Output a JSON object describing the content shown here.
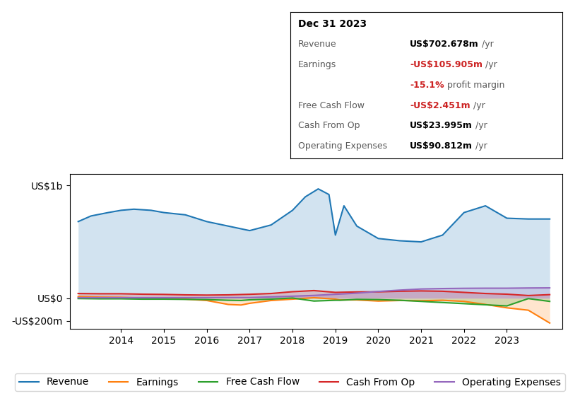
{
  "chart_data": {
    "type": "area",
    "xlim": [
      2012.8,
      2024.3
    ],
    "ylim": [
      -270,
      1100
    ],
    "xticks": [
      2014,
      2015,
      2016,
      2017,
      2018,
      2019,
      2020,
      2021,
      2022,
      2023
    ],
    "yticks": [
      {
        "value": -200,
        "label": "-US$200m"
      },
      {
        "value": 0,
        "label": "US$0"
      },
      {
        "value": 1000,
        "label": "US$1b"
      }
    ],
    "legend": "lower center",
    "series": [
      {
        "name": "Revenue",
        "x": [
          2013.0,
          2013.3,
          2013.7,
          2014.0,
          2014.3,
          2014.7,
          2015.0,
          2015.5,
          2016.0,
          2016.5,
          2017.0,
          2017.5,
          2018.0,
          2018.3,
          2018.6,
          2018.85,
          2019.0,
          2019.2,
          2019.5,
          2020.0,
          2020.5,
          2021.0,
          2021.5,
          2022.0,
          2022.5,
          2023.0,
          2023.5,
          2024.0
        ],
        "values": [
          680,
          730,
          760,
          780,
          790,
          780,
          760,
          740,
          680,
          640,
          600,
          650,
          780,
          900,
          970,
          920,
          560,
          820,
          640,
          530,
          510,
          500,
          560,
          760,
          820,
          710,
          703,
          703
        ]
      },
      {
        "name": "Earnings",
        "x": [
          2013.0,
          2013.5,
          2014.0,
          2014.5,
          2015.0,
          2015.5,
          2016.0,
          2016.5,
          2016.8,
          2017.0,
          2017.5,
          2018.0,
          2018.5,
          2019.0,
          2019.1,
          2019.5,
          2020.0,
          2020.5,
          2021.0,
          2021.5,
          2022.0,
          2022.5,
          2023.0,
          2023.5,
          2024.0
        ],
        "values": [
          15,
          10,
          8,
          2,
          -5,
          -8,
          -20,
          -55,
          -60,
          -45,
          -20,
          -8,
          5,
          -8,
          -15,
          -15,
          -25,
          -20,
          -22,
          -18,
          -28,
          -55,
          -85,
          -106,
          -220
        ]
      },
      {
        "name": "Free Cash Flow",
        "x": [
          2013.0,
          2013.5,
          2014.0,
          2014.5,
          2015.0,
          2015.5,
          2016.0,
          2016.5,
          2016.8,
          2017.0,
          2017.5,
          2018.0,
          2018.5,
          2019.0,
          2019.1,
          2019.5,
          2020.0,
          2020.5,
          2021.0,
          2021.5,
          2022.0,
          2022.5,
          2023.0,
          2023.5,
          2024.0
        ],
        "values": [
          -3,
          -5,
          -5,
          -8,
          -8,
          -10,
          -12,
          -18,
          -20,
          -14,
          -8,
          2,
          -25,
          -18,
          -18,
          -10,
          -12,
          -18,
          -28,
          -38,
          -48,
          -58,
          -68,
          -3,
          -28
        ]
      },
      {
        "name": "Cash From Op",
        "x": [
          2013.0,
          2013.5,
          2014.0,
          2014.5,
          2015.0,
          2015.5,
          2016.0,
          2016.5,
          2017.0,
          2017.5,
          2018.0,
          2018.5,
          2019.0,
          2019.5,
          2020.0,
          2020.5,
          2021.0,
          2021.5,
          2022.0,
          2022.5,
          2023.0,
          2023.5,
          2024.0
        ],
        "values": [
          42,
          40,
          40,
          36,
          34,
          30,
          28,
          30,
          35,
          42,
          58,
          68,
          52,
          56,
          57,
          62,
          65,
          62,
          52,
          42,
          36,
          24,
          32
        ]
      },
      {
        "name": "Operating Expenses",
        "x": [
          2013.0,
          2013.5,
          2014.0,
          2014.5,
          2015.0,
          2015.5,
          2016.0,
          2016.5,
          2017.0,
          2017.5,
          2018.0,
          2018.5,
          2019.0,
          2019.5,
          2020.0,
          2020.5,
          2021.0,
          2021.5,
          2022.0,
          2022.5,
          2023.0,
          2023.5,
          2024.0
        ],
        "values": [
          5,
          5,
          5,
          5,
          5,
          5,
          5,
          6,
          6,
          12,
          18,
          25,
          35,
          45,
          60,
          72,
          82,
          86,
          88,
          89,
          89,
          91,
          92
        ]
      }
    ],
    "annotations": {
      "title": "Dec 31 2023",
      "rows": [
        {
          "label": "Revenue",
          "value": "US$702.678m",
          "suffix": " /yr"
        },
        {
          "label": "Earnings",
          "value": "-US$105.905m",
          "color": "#cc2222",
          "suffix": " /yr",
          "extra": [
            {
              "text": "-15.1%",
              "color": "#cc2222"
            },
            {
              "text": " profit margin"
            }
          ]
        },
        {
          "label": "Free Cash Flow",
          "value": "-US$2.451m",
          "color": "#cc2222",
          "suffix": " /yr"
        },
        {
          "label": "Cash From Op",
          "value": "US$23.995m",
          "suffix": " /yr"
        },
        {
          "label": "Operating Expenses",
          "value": "US$90.812m",
          "suffix": " /yr"
        }
      ]
    }
  }
}
